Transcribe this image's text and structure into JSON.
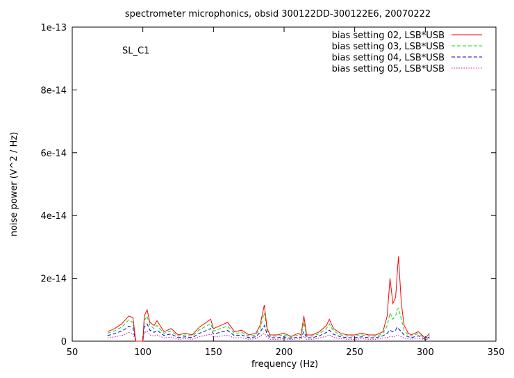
{
  "chart_data": {
    "type": "line",
    "title": "spectrometer microphonics, obsid 300122DD-300122E6, 20070222",
    "annotation": "SL_C1",
    "xlabel": "frequency (Hz)",
    "ylabel": "noise power (V^2 / Hz)",
    "xlim": [
      50,
      350
    ],
    "ylim": [
      0,
      1e-13
    ],
    "x_ticks": [
      50,
      100,
      150,
      200,
      250,
      300,
      350
    ],
    "x_tick_labels": [
      "50",
      "100",
      "150",
      "200",
      "250",
      "300",
      "350"
    ],
    "y_ticks": [
      0,
      2e-14,
      4e-14,
      6e-14,
      8e-14,
      1e-13
    ],
    "y_tick_labels": [
      "0",
      "2e-14",
      "4e-14",
      "6e-14",
      "8e-14",
      "1e-13"
    ],
    "grid": false,
    "legend_position": "top-right",
    "x": [
      75,
      80,
      85,
      88,
      90,
      93,
      95,
      100,
      101,
      103,
      105,
      108,
      110,
      115,
      120,
      125,
      130,
      135,
      140,
      145,
      148,
      150,
      155,
      160,
      165,
      170,
      175,
      180,
      183,
      186,
      188,
      190,
      195,
      200,
      205,
      210,
      212,
      214,
      216,
      220,
      225,
      230,
      232,
      235,
      240,
      245,
      250,
      255,
      260,
      265,
      270,
      273,
      275,
      277,
      279,
      280,
      281,
      283,
      285,
      288,
      290,
      295,
      300,
      303
    ],
    "series": [
      {
        "name": "bias setting 02, LSB*USB",
        "color": "#ff0000",
        "style": "solid",
        "values": [
          3e-15,
          4e-15,
          5.5e-15,
          7e-15,
          8e-15,
          7.5e-15,
          0,
          0,
          8e-15,
          1e-14,
          6e-15,
          5e-15,
          6.5e-15,
          3e-15,
          4e-15,
          2e-15,
          2.5e-15,
          2e-15,
          4.5e-15,
          6e-15,
          7e-15,
          4e-15,
          5e-15,
          6e-15,
          3e-15,
          3.5e-15,
          2e-15,
          2.5e-15,
          5e-15,
          1.15e-14,
          4e-15,
          2e-15,
          2e-15,
          2.5e-15,
          1.5e-15,
          2.5e-15,
          2e-15,
          8e-15,
          2e-15,
          2e-15,
          3e-15,
          5e-15,
          7e-15,
          4e-15,
          2.5e-15,
          2e-15,
          2e-15,
          2.5e-15,
          2e-15,
          2e-15,
          3e-15,
          8e-15,
          2e-14,
          1.2e-14,
          1.4e-14,
          2.1e-14,
          2.7e-14,
          1.2e-14,
          5e-15,
          2.5e-15,
          2e-15,
          3e-15,
          1e-15,
          2.5e-15
        ]
      },
      {
        "name": "bias setting 03, LSB*USB",
        "color": "#00dd00",
        "style": "dashed",
        "values": [
          2.5e-15,
          3.3e-15,
          4.5e-15,
          5.8e-15,
          6.8e-15,
          6e-15,
          0,
          0,
          6.5e-15,
          8e-15,
          5e-15,
          4e-15,
          5e-15,
          2.5e-15,
          3.2e-15,
          1.6e-15,
          2e-15,
          1.6e-15,
          3.6e-15,
          4.8e-15,
          5.6e-15,
          3.2e-15,
          4e-15,
          4.8e-15,
          2.4e-15,
          2.8e-15,
          1.6e-15,
          2e-15,
          4e-15,
          9e-15,
          3.2e-15,
          1.6e-15,
          1.6e-15,
          2e-15,
          1.2e-15,
          2e-15,
          1.6e-15,
          6e-15,
          1.6e-15,
          1.6e-15,
          2.4e-15,
          4e-15,
          5.5e-15,
          3.2e-15,
          2e-15,
          1.6e-15,
          1.6e-15,
          2e-15,
          1.6e-15,
          1.6e-15,
          2.4e-15,
          5e-15,
          9e-15,
          7e-15,
          8e-15,
          1e-14,
          1.05e-14,
          7e-15,
          3.5e-15,
          2e-15,
          1.6e-15,
          2.4e-15,
          8e-16,
          2e-15
        ]
      },
      {
        "name": "bias setting 04, LSB*USB",
        "color": "#0000cc",
        "style": "dashed",
        "values": [
          1.8e-15,
          2.4e-15,
          3.2e-15,
          4e-15,
          4.8e-15,
          4.2e-15,
          0,
          0,
          4.5e-15,
          5.5e-15,
          3.5e-15,
          2.8e-15,
          3.5e-15,
          1.8e-15,
          2.3e-15,
          1.1e-15,
          1.4e-15,
          1.1e-15,
          2.5e-15,
          3.4e-15,
          4e-15,
          2.3e-15,
          2.8e-15,
          3.4e-15,
          1.7e-15,
          2e-15,
          1.1e-15,
          1.4e-15,
          2.8e-15,
          5e-15,
          2.2e-15,
          1.1e-15,
          1.1e-15,
          1.4e-15,
          8e-16,
          1.4e-15,
          1.1e-15,
          3e-15,
          1.1e-15,
          1.1e-15,
          1.7e-15,
          2.8e-15,
          3.5e-15,
          2.2e-15,
          1.4e-15,
          1.1e-15,
          1.1e-15,
          1.4e-15,
          1.1e-15,
          1.1e-15,
          1.7e-15,
          2.5e-15,
          3.5e-15,
          3e-15,
          3.5e-15,
          4.5e-15,
          4e-15,
          3e-15,
          2e-15,
          1.4e-15,
          1.1e-15,
          1.7e-15,
          6e-16,
          1.4e-15
        ]
      },
      {
        "name": "bias setting 05, LSB*USB",
        "color": "#cc00cc",
        "style": "dotted",
        "values": [
          1e-15,
          1.4e-15,
          1.8e-15,
          2.3e-15,
          2.8e-15,
          2.4e-15,
          0,
          0,
          2.6e-15,
          3.2e-15,
          2e-15,
          1.6e-15,
          2e-15,
          1e-15,
          1.3e-15,
          6e-16,
          8e-16,
          6e-16,
          1.4e-15,
          1.9e-15,
          2.3e-15,
          1.3e-15,
          1.6e-15,
          1.9e-15,
          1e-15,
          1.1e-15,
          6e-16,
          8e-16,
          1.6e-15,
          2.5e-15,
          1.2e-15,
          6e-16,
          6e-16,
          8e-16,
          5e-16,
          8e-16,
          6e-16,
          1.6e-15,
          6e-16,
          6e-16,
          1e-15,
          1.6e-15,
          2e-15,
          1.2e-15,
          8e-16,
          6e-16,
          6e-16,
          8e-16,
          6e-16,
          6e-16,
          1e-15,
          1.2e-15,
          1.5e-15,
          1.4e-15,
          1.6e-15,
          2e-15,
          1.8e-15,
          1.4e-15,
          1e-15,
          8e-16,
          6e-16,
          1e-15,
          4e-16,
          8e-16
        ]
      }
    ]
  }
}
